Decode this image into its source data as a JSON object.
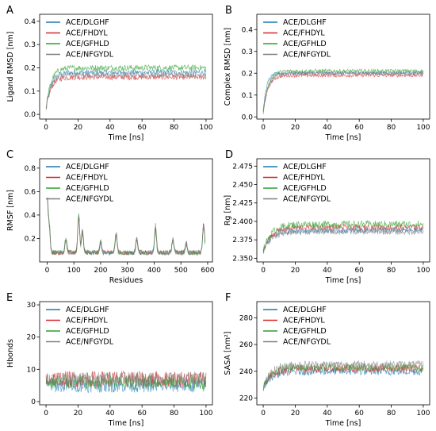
{
  "colors": [
    "#1f77b4",
    "#d62728",
    "#2ca02c",
    "#7f7f7f"
  ],
  "legend": [
    "ACE/DLGHF",
    "ACE/FHDYL",
    "ACE/GFHLD",
    "ACE/NFGYDL"
  ],
  "chart_data": [
    {
      "panel": "A",
      "type": "line",
      "xlabel": "Time [ns]",
      "ylabel": "Ligand RMSD [nm]",
      "xlim": [
        -4,
        104
      ],
      "ylim": [
        -0.02,
        0.43
      ],
      "xticks": [
        0,
        20,
        40,
        60,
        80,
        100
      ],
      "yticks": [
        0.0,
        0.1,
        0.2,
        0.3,
        0.4
      ],
      "ytick_labels": [
        "0.0",
        "0.1",
        "0.2",
        "0.3",
        "0.4"
      ],
      "x_range": [
        0,
        100
      ],
      "series": [
        {
          "name": "ACE/DLGHF",
          "start": 0.02,
          "plateau": 0.18,
          "tau": 3,
          "noise": 0.012
        },
        {
          "name": "ACE/FHDYL",
          "start": 0.02,
          "plateau": 0.16,
          "tau": 3,
          "noise": 0.012
        },
        {
          "name": "ACE/GFHLD",
          "start": 0.02,
          "plateau": 0.2,
          "tau": 3,
          "noise": 0.013
        },
        {
          "name": "ACE/NFGYDL",
          "start": 0.02,
          "plateau": 0.17,
          "tau": 3,
          "noise": 0.012
        }
      ]
    },
    {
      "panel": "B",
      "type": "line",
      "xlabel": "Time [ns]",
      "ylabel": "Complex RMSD [nm]",
      "xlim": [
        -4,
        104
      ],
      "ylim": [
        -0.01,
        0.47
      ],
      "xticks": [
        0,
        20,
        40,
        60,
        80,
        100
      ],
      "yticks": [
        0.0,
        0.1,
        0.2,
        0.3,
        0.4
      ],
      "ytick_labels": [
        "0.0",
        "0.1",
        "0.2",
        "0.3",
        "0.4"
      ],
      "x_range": [
        0,
        100
      ],
      "series": [
        {
          "name": "ACE/DLGHF",
          "start": 0.02,
          "plateau": 0.2,
          "tau": 2,
          "noise": 0.008
        },
        {
          "name": "ACE/FHDYL",
          "start": 0.02,
          "plateau": 0.19,
          "tau": 3,
          "noise": 0.008
        },
        {
          "name": "ACE/GFHLD",
          "start": 0.02,
          "plateau": 0.21,
          "tau": 3,
          "noise": 0.009
        },
        {
          "name": "ACE/NFGYDL",
          "start": 0.02,
          "plateau": 0.2,
          "tau": 3,
          "noise": 0.008
        }
      ]
    },
    {
      "panel": "C",
      "type": "line",
      "xlabel": "Residues",
      "ylabel": "RMSF [nm]",
      "xlim": [
        -28,
        618
      ],
      "ylim": [
        0.0,
        0.88
      ],
      "xticks": [
        0,
        100,
        200,
        300,
        400,
        500,
        600
      ],
      "yticks": [
        0.2,
        0.4,
        0.6,
        0.8
      ],
      "ytick_labels": [
        "0.2",
        "0.4",
        "0.6",
        "0.8"
      ],
      "x_range": [
        0,
        590
      ],
      "baseline": 0.08,
      "peaks": [
        [
          0,
          0.55
        ],
        [
          8,
          0.3
        ],
        [
          70,
          0.2
        ],
        [
          118,
          0.42
        ],
        [
          132,
          0.27
        ],
        [
          200,
          0.17
        ],
        [
          258,
          0.25
        ],
        [
          335,
          0.2
        ],
        [
          405,
          0.3
        ],
        [
          470,
          0.2
        ],
        [
          520,
          0.16
        ],
        [
          585,
          0.32
        ]
      ],
      "series": [
        {
          "name": "ACE/DLGHF"
        },
        {
          "name": "ACE/FHDYL"
        },
        {
          "name": "ACE/GFHLD"
        },
        {
          "name": "ACE/NFGYDL"
        }
      ]
    },
    {
      "panel": "D",
      "type": "line",
      "xlabel": "Time [ns]",
      "ylabel": "Rg [nm]",
      "xlim": [
        -4,
        104
      ],
      "ylim": [
        2.345,
        2.485
      ],
      "xticks": [
        0,
        20,
        40,
        60,
        80,
        100
      ],
      "yticks": [
        2.35,
        2.375,
        2.4,
        2.425,
        2.45,
        2.475
      ],
      "ytick_labels": [
        "2.350",
        "2.375",
        "2.400",
        "2.425",
        "2.450",
        "2.475"
      ],
      "x_range": [
        0,
        100
      ],
      "series": [
        {
          "name": "ACE/DLGHF",
          "start": 2.36,
          "plateau": 2.388,
          "tau": 5,
          "noise": 0.004
        },
        {
          "name": "ACE/FHDYL",
          "start": 2.36,
          "plateau": 2.392,
          "tau": 5,
          "noise": 0.004
        },
        {
          "name": "ACE/GFHLD",
          "start": 2.36,
          "plateau": 2.396,
          "tau": 5,
          "noise": 0.005
        },
        {
          "name": "ACE/NFGYDL",
          "start": 2.36,
          "plateau": 2.386,
          "tau": 5,
          "noise": 0.004
        }
      ]
    },
    {
      "panel": "E",
      "type": "line",
      "xlabel": "Time [ns]",
      "ylabel": "Hbonds",
      "xlim": [
        -4,
        104
      ],
      "ylim": [
        -1,
        31
      ],
      "xticks": [
        0,
        20,
        40,
        60,
        80,
        100
      ],
      "yticks": [
        0,
        10,
        20,
        30
      ],
      "ytick_labels": [
        "0",
        "10",
        "20",
        "30"
      ],
      "x_range": [
        0,
        100
      ],
      "series": [
        {
          "name": "ACE/DLGHF",
          "start": 5,
          "plateau": 5,
          "tau": 1,
          "noise": 2.2
        },
        {
          "name": "ACE/FHDYL",
          "start": 7,
          "plateau": 7,
          "tau": 1,
          "noise": 2.5
        },
        {
          "name": "ACE/GFHLD",
          "start": 6,
          "plateau": 6,
          "tau": 1,
          "noise": 2.2
        },
        {
          "name": "ACE/NFGYDL",
          "start": 8,
          "plateau": 7,
          "tau": 1,
          "noise": 2.3
        }
      ]
    },
    {
      "panel": "F",
      "type": "line",
      "xlabel": "Time [ns]",
      "ylabel": "SASA [nm²]",
      "xlim": [
        -4,
        104
      ],
      "ylim": [
        215,
        292
      ],
      "xticks": [
        0,
        20,
        40,
        60,
        80,
        100
      ],
      "yticks": [
        220,
        240,
        260,
        280
      ],
      "ytick_labels": [
        "220",
        "240",
        "260",
        "280"
      ],
      "x_range": [
        0,
        100
      ],
      "series": [
        {
          "name": "ACE/DLGHF",
          "start": 228,
          "plateau": 240,
          "tau": 5,
          "noise": 3.0
        },
        {
          "name": "ACE/FHDYL",
          "start": 228,
          "plateau": 242,
          "tau": 5,
          "noise": 3.0
        },
        {
          "name": "ACE/GFHLD",
          "start": 228,
          "plateau": 243,
          "tau": 5,
          "noise": 3.0
        },
        {
          "name": "ACE/NFGYDL",
          "start": 228,
          "plateau": 245,
          "tau": 5,
          "noise": 3.0
        }
      ]
    }
  ]
}
